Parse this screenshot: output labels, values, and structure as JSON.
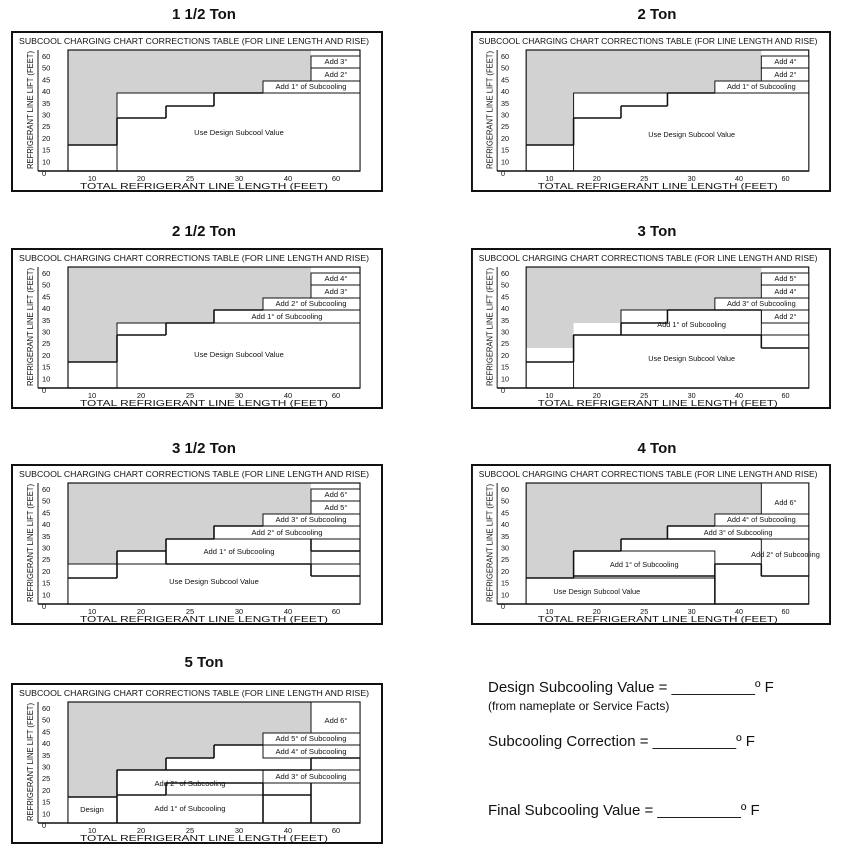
{
  "chart_header": "SUBCOOL CHARGING CHART CORRECTIONS TABLE  (FOR LINE LENGTH AND RISE)",
  "y_axis_label": "REFRIGERANT LINE LIFT (FEET)",
  "x_axis_label": "TOTAL REFRIGERANT LINE LENGTH  (FEET)",
  "y_ticks": [
    "60",
    "50",
    "45",
    "40",
    "35",
    "30",
    "25",
    "20",
    "15",
    "10",
    "0"
  ],
  "x_ticks": [
    "10",
    "20",
    "25",
    "30",
    "40",
    "60"
  ],
  "charts": [
    {
      "title": "1 1/2 Ton",
      "labels": [
        "Add 3°",
        "Add 2°",
        "Add 1° of Subcooling",
        "Use Design Subcool Value"
      ]
    },
    {
      "title": "2  Ton",
      "labels": [
        "Add 4°",
        "Add 2°",
        "Add 1° of Subcooling",
        "Use Design Subcool Value"
      ]
    },
    {
      "title": "2 1/2 Ton",
      "labels": [
        "Add 4°",
        "Add 3°",
        "Add 2° of Subcooling",
        "Add 1° of Subcooling",
        "Use Design Subcool Value"
      ]
    },
    {
      "title": "3 Ton",
      "labels": [
        "Add 5°",
        "Add 4°",
        "Add 3° of Subcooling",
        "Add 2°",
        "Add 1° of Subcooling",
        "Use Design Subcool Value"
      ]
    },
    {
      "title": "3 1/2 Ton",
      "labels": [
        "Add 6°",
        "Add 5°",
        "Add 3° of Subcooling",
        "Add 2° of Subcooling",
        "Add 1° of Subcooling",
        "Use Design Subcool Value"
      ]
    },
    {
      "title": "4 Ton",
      "labels": [
        "Add 6°",
        "Add 4° of Subcooling",
        "Add 3° of Subcooling",
        "Add 2° of Subcooling",
        "Add 1° of Subcooling",
        "Use Design Subcool Value"
      ]
    },
    {
      "title": "5 Ton",
      "labels": [
        "Add 6°",
        "Add 5° of Subcooling",
        "Add 4° of Subcooling",
        "Add 3° of Subcooling",
        "Add 2° of Subcooling",
        "Add 1° of Subcooling",
        "Design"
      ]
    }
  ],
  "footer": {
    "design_value": "Design Subcooling Value = __________º F",
    "design_note": "(from nameplate or Service Facts)",
    "correction": "Subcooling Correction = __________º F",
    "final": "Final Subcooling Value = __________º F"
  },
  "colors": {
    "shade": "#d2d2d2",
    "line": "#111111"
  }
}
